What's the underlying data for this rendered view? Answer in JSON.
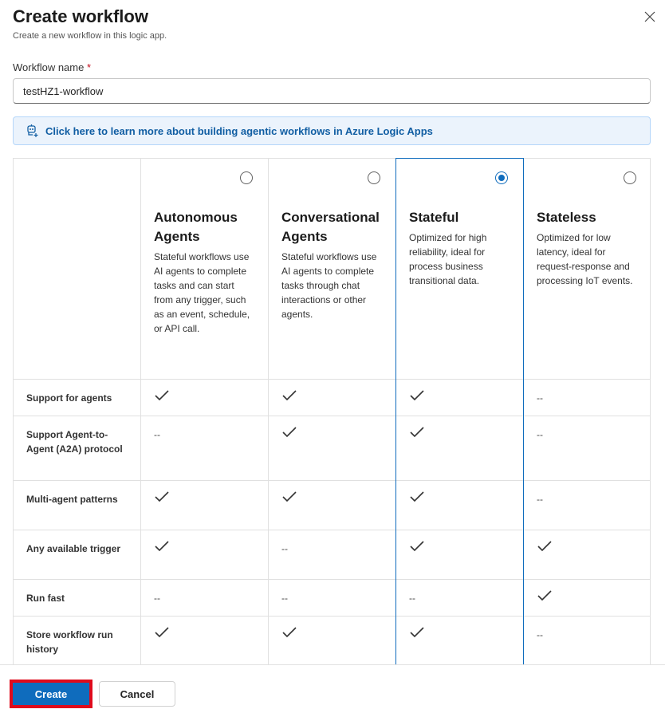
{
  "header": {
    "title": "Create workflow",
    "subtitle": "Create a new workflow in this logic app.",
    "close_icon": "close-icon"
  },
  "form": {
    "name_label": "Workflow name",
    "required_mark": "*",
    "name_value": "testHZ1-workflow"
  },
  "banner": {
    "icon": "agent-sparkle-icon",
    "text": "Click here to learn more about building agentic workflows in Azure Logic Apps"
  },
  "options": [
    {
      "title": "Autonomous Agents",
      "description": "Stateful workflows use AI agents to complete tasks and can start from any trigger, such as an event, schedule, or API call.",
      "selected": false
    },
    {
      "title": "Conversational Agents",
      "description": "Stateful workflows use AI agents to complete tasks through chat interactions or other agents.",
      "selected": false
    },
    {
      "title": "Stateful",
      "description": "Optimized for high reliability, ideal for process business transitional data.",
      "selected": true
    },
    {
      "title": "Stateless",
      "description": "Optimized for low latency, ideal for request-response and processing IoT events.",
      "selected": false
    }
  ],
  "features": [
    {
      "label": "Support for agents",
      "values": [
        "check",
        "check",
        "check",
        "--"
      ]
    },
    {
      "label": "Support Agent-to-Agent (A2A) protocol",
      "values": [
        "--",
        "check",
        "check",
        "--"
      ]
    },
    {
      "label": "Multi-agent patterns",
      "values": [
        "check",
        "check",
        "check",
        "--"
      ]
    },
    {
      "label": "Any available trigger",
      "values": [
        "check",
        "--",
        "check",
        "check"
      ]
    },
    {
      "label": "Run fast",
      "values": [
        "--",
        "--",
        "--",
        "check"
      ]
    },
    {
      "label": "Store workflow run history",
      "values": [
        "check",
        "check",
        "check",
        "--"
      ]
    }
  ],
  "footer": {
    "create_label": "Create",
    "cancel_label": "Cancel"
  },
  "colors": {
    "accent": "#0f6cbd",
    "highlight": "#e00b1c",
    "banner_bg": "#ebf3fc"
  }
}
